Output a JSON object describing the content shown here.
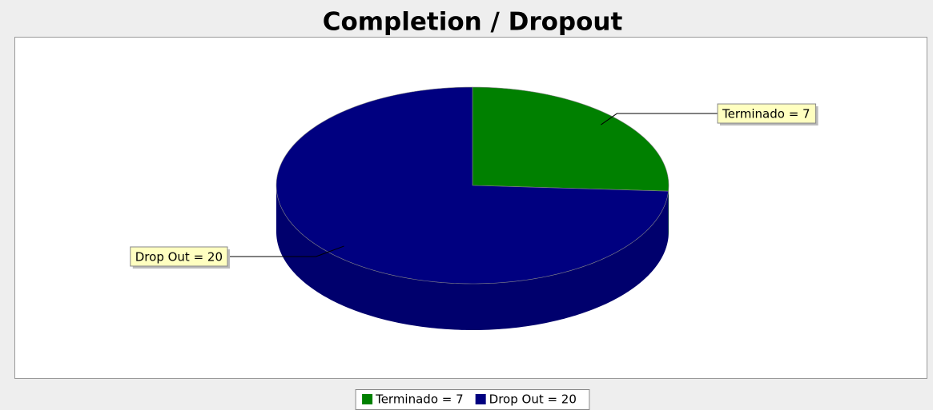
{
  "chart_data": {
    "type": "pie3d",
    "title": "Completion / Dropout",
    "categories": [
      "Terminado = 7",
      "Drop Out = 20"
    ],
    "values": [
      7,
      20
    ],
    "colors": [
      "#008000",
      "#000080"
    ]
  }
}
